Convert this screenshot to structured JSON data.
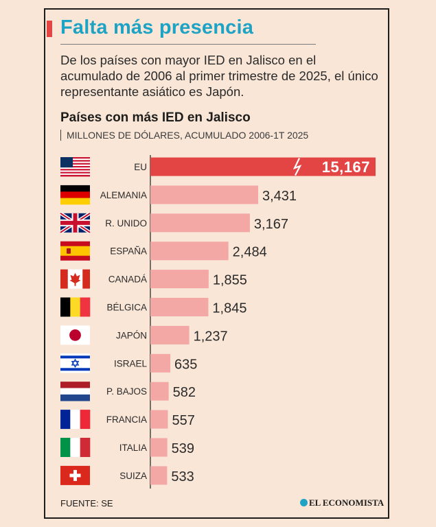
{
  "header": {
    "title": "Falta más presencia",
    "deck": "De los países con mayor IED en Jalisco en el acumulado de 2006 al primer trimestre de 2025, el único representante asiático es Japón."
  },
  "footer": {
    "source": "FUENTE: SE",
    "brand": "EL ECONOMISTA"
  },
  "colors": {
    "highlight_bar": "#e34545",
    "bar": "#f4a8a6",
    "title_accent": "#1fa3c4"
  },
  "chart_data": {
    "type": "bar",
    "orientation": "horizontal",
    "title": "Países con más IED en Jalisco",
    "subtitle": "MILLONES DE DÓLARES, ACUMULADO 2006-1T 2025",
    "categories": [
      "EU",
      "ALEMANIA",
      "R. UNIDO",
      "ESPAÑA",
      "CANADÁ",
      "BÉLGICA",
      "JAPÓN",
      "ISRAEL",
      "P. BAJOS",
      "FRANCIA",
      "ITALIA",
      "SUIZA"
    ],
    "values": [
      15167,
      3431,
      3167,
      2484,
      1855,
      1845,
      1237,
      635,
      582,
      557,
      539,
      533
    ],
    "value_labels": [
      "15,167",
      "3,431",
      "3,167",
      "2,484",
      "1,855",
      "1,845",
      "1,237",
      "635",
      "582",
      "557",
      "539",
      "533"
    ],
    "flag_icons": [
      "usa-flag-icon",
      "germany-flag-icon",
      "uk-flag-icon",
      "spain-flag-icon",
      "canada-flag-icon",
      "belgium-flag-icon",
      "japan-flag-icon",
      "israel-flag-icon",
      "netherlands-flag-icon",
      "france-flag-icon",
      "italy-flag-icon",
      "switzerland-flag-icon"
    ],
    "highlight_category": "EU",
    "broken_axis_on": "EU",
    "grid": false,
    "legend": "none"
  }
}
